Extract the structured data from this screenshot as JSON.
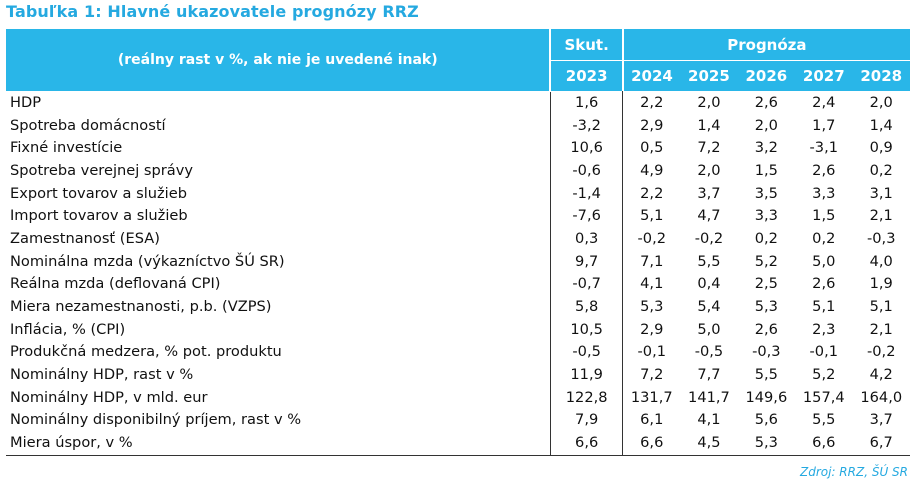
{
  "title": "Tabuľka 1: Hlavné ukazovatele prognózy RRZ",
  "header": {
    "subtitle": "(reálny rast v %, ak nie je uvedené inak)",
    "actual_label": "Skut.",
    "forecast_label": "Prognóza",
    "years": [
      "2023",
      "2024",
      "2025",
      "2026",
      "2027",
      "2028"
    ]
  },
  "rows": [
    {
      "label": "HDP",
      "values": [
        "1,6",
        "2,2",
        "2,0",
        "2,6",
        "2,4",
        "2,0"
      ]
    },
    {
      "label": "Spotreba domácností",
      "values": [
        "-3,2",
        "2,9",
        "1,4",
        "2,0",
        "1,7",
        "1,4"
      ]
    },
    {
      "label": "Fixné investície",
      "values": [
        "10,6",
        "0,5",
        "7,2",
        "3,2",
        "-3,1",
        "0,9"
      ]
    },
    {
      "label": "Spotreba verejnej správy",
      "values": [
        "-0,6",
        "4,9",
        "2,0",
        "1,5",
        "2,6",
        "0,2"
      ]
    },
    {
      "label": "Export tovarov a služieb",
      "values": [
        "-1,4",
        "2,2",
        "3,7",
        "3,5",
        "3,3",
        "3,1"
      ]
    },
    {
      "label": "Import tovarov a služieb",
      "values": [
        "-7,6",
        "5,1",
        "4,7",
        "3,3",
        "1,5",
        "2,1"
      ]
    },
    {
      "label": "Zamestnanosť (ESA)",
      "values": [
        "0,3",
        "-0,2",
        "-0,2",
        "0,2",
        "0,2",
        "-0,3"
      ]
    },
    {
      "label": "Nominálna mzda (výkazníctvo ŠÚ SR)",
      "values": [
        "9,7",
        "7,1",
        "5,5",
        "5,2",
        "5,0",
        "4,0"
      ]
    },
    {
      "label": "Reálna mzda (deflovaná CPI)",
      "values": [
        "-0,7",
        "4,1",
        "0,4",
        "2,5",
        "2,6",
        "1,9"
      ]
    },
    {
      "label": "Miera nezamestnanosti, p.b. (VZPS)",
      "values": [
        "5,8",
        "5,3",
        "5,4",
        "5,3",
        "5,1",
        "5,1"
      ]
    },
    {
      "label": "Inflácia, % (CPI)",
      "values": [
        "10,5",
        "2,9",
        "5,0",
        "2,6",
        "2,3",
        "2,1"
      ]
    },
    {
      "label": "Produkčná medzera, % pot. produktu",
      "values": [
        "-0,5",
        "-0,1",
        "-0,5",
        "-0,3",
        "-0,1",
        "-0,2"
      ]
    },
    {
      "label": "Nominálny HDP, rast v %",
      "values": [
        "11,9",
        "7,2",
        "7,7",
        "5,5",
        "5,2",
        "4,2"
      ]
    },
    {
      "label": "Nominálny HDP, v mld. eur",
      "values": [
        "122,8",
        "131,7",
        "141,7",
        "149,6",
        "157,4",
        "164,0"
      ]
    },
    {
      "label": "Nominálny disponibilný príjem, rast v %",
      "values": [
        "7,9",
        "6,1",
        "4,1",
        "5,6",
        "5,5",
        "3,7"
      ]
    },
    {
      "label": "Miera úspor, v %",
      "values": [
        "6,6",
        "6,6",
        "4,5",
        "5,3",
        "6,6",
        "6,7"
      ]
    }
  ],
  "source": "Zdroj: RRZ, ŠÚ SR",
  "colors": {
    "accent": "#29b6e8",
    "title": "#25a9e0"
  }
}
